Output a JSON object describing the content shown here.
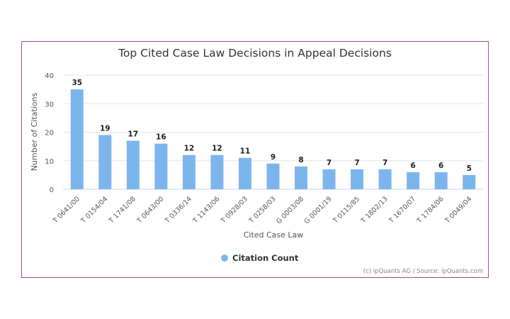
{
  "chart_data": {
    "type": "bar",
    "title": "Top Cited Case Law Decisions in Appeal Decisions",
    "xlabel": "Cited Case Law",
    "ylabel": "Number of Citations",
    "ylim": [
      0,
      40
    ],
    "yticks": [
      0,
      10,
      20,
      30,
      40
    ],
    "grid": true,
    "categories": [
      "T 0641/00",
      "T 0154/04",
      "T 1741/08",
      "T 0643/00",
      "T 0336/14",
      "T 1143/06",
      "T 0928/03",
      "T 0258/03",
      "G 0003/08",
      "G 0001/19",
      "T 0115/85",
      "T 1802/13",
      "T 1670/07",
      "T 1784/06",
      "T 0049/04"
    ],
    "series": [
      {
        "name": "Citation Count",
        "values": [
          35,
          19,
          17,
          16,
          12,
          12,
          11,
          9,
          8,
          7,
          7,
          7,
          6,
          6,
          5
        ],
        "color": "#7cb5ec"
      }
    ],
    "legend": "bottom-center",
    "credits": "(c) ipQuants AG / Source: ipQuants.com"
  }
}
